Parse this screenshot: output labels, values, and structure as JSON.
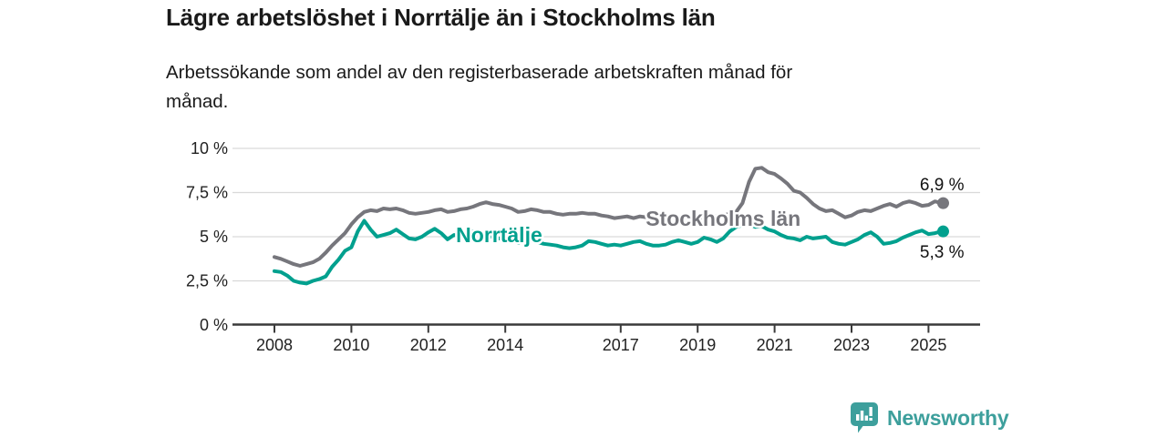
{
  "title": "Lägre arbetslöshet i Norrtälje än i Stockholms län",
  "subtitle_lines": [
    "Arbetssökande som andel av den registerbaserade arbetskraften månad för",
    "månad."
  ],
  "branding": {
    "name": "Newsworthy",
    "color": "#3D9F9C",
    "icon": "bar-chart-speech-bubble-icon"
  },
  "chart_data": {
    "type": "line",
    "title": "Lägre arbetslöshet i Norrtälje än i Stockholms län",
    "subtitle": "Arbetssökande som andel av den registerbaserade arbetskraften månad för månad.",
    "unit": "%",
    "grid": true,
    "legend_position": "inline-labels",
    "ylim": [
      0,
      10
    ],
    "xlim": [
      2006.9,
      2026.3
    ],
    "x_start": 2008,
    "x_step_years": 0.16667,
    "y_ticks": [
      {
        "value": 0,
        "label": "0 %"
      },
      {
        "value": 2.5,
        "label": "2,5 %"
      },
      {
        "value": 5,
        "label": "5 %"
      },
      {
        "value": 7.5,
        "label": "7,5 %"
      },
      {
        "value": 10,
        "label": "10 %"
      }
    ],
    "x_ticks": [
      {
        "value": 2008,
        "label": "2008"
      },
      {
        "value": 2010,
        "label": "2010"
      },
      {
        "value": 2012,
        "label": "2012"
      },
      {
        "value": 2014,
        "label": "2014"
      },
      {
        "value": 2017,
        "label": "2017"
      },
      {
        "value": 2019,
        "label": "2019"
      },
      {
        "value": 2021,
        "label": "2021"
      },
      {
        "value": 2023,
        "label": "2023"
      },
      {
        "value": 2025,
        "label": "2025"
      }
    ],
    "series": [
      {
        "name": "Stockholms län",
        "color": "#76767C",
        "end_value": 6.9,
        "end_label": "6,9 %",
        "end_label_position": "above",
        "inline_label": {
          "year": 2017.65,
          "value": 5.62
        },
        "values": [
          3.85,
          3.75,
          3.6,
          3.45,
          3.35,
          3.45,
          3.55,
          3.75,
          4.1,
          4.5,
          4.85,
          5.2,
          5.7,
          6.1,
          6.4,
          6.5,
          6.45,
          6.6,
          6.55,
          6.6,
          6.5,
          6.35,
          6.3,
          6.35,
          6.4,
          6.5,
          6.55,
          6.4,
          6.45,
          6.55,
          6.6,
          6.7,
          6.85,
          6.95,
          6.85,
          6.8,
          6.7,
          6.6,
          6.4,
          6.45,
          6.55,
          6.5,
          6.4,
          6.4,
          6.3,
          6.25,
          6.3,
          6.3,
          6.35,
          6.3,
          6.3,
          6.2,
          6.15,
          6.05,
          6.1,
          6.15,
          6.05,
          6.15,
          6.1,
          6.05,
          6.1,
          6.1,
          6.15,
          6.1,
          6.05,
          6.1,
          6.1,
          6.1,
          6.15,
          6.15,
          6.2,
          6.3,
          6.4,
          6.9,
          8.1,
          8.85,
          8.9,
          8.65,
          8.55,
          8.3,
          8.0,
          7.6,
          7.5,
          7.2,
          6.85,
          6.6,
          6.45,
          6.5,
          6.3,
          6.1,
          6.2,
          6.4,
          6.5,
          6.45,
          6.6,
          6.75,
          6.85,
          6.7,
          6.9,
          7.0,
          6.9,
          6.75,
          6.8,
          7.0,
          6.9
        ]
      },
      {
        "name": "Norrtälje",
        "color": "#00A08E",
        "end_value": 5.3,
        "end_label": "5,3 %",
        "end_label_position": "below",
        "inline_label": {
          "year": 2012.72,
          "value": 4.68
        },
        "values": [
          3.05,
          3.0,
          2.8,
          2.5,
          2.4,
          2.35,
          2.5,
          2.6,
          2.75,
          3.3,
          3.7,
          4.2,
          4.4,
          5.3,
          5.9,
          5.4,
          5.0,
          5.1,
          5.2,
          5.4,
          5.15,
          4.9,
          4.85,
          5.0,
          5.25,
          5.45,
          5.2,
          4.85,
          5.1,
          5.0,
          5.15,
          5.3,
          5.15,
          5.05,
          5.0,
          4.9,
          4.85,
          4.8,
          4.65,
          4.7,
          4.8,
          4.7,
          4.6,
          4.55,
          4.5,
          4.4,
          4.35,
          4.4,
          4.5,
          4.75,
          4.7,
          4.6,
          4.5,
          4.55,
          4.5,
          4.6,
          4.7,
          4.75,
          4.6,
          4.5,
          4.5,
          4.55,
          4.7,
          4.8,
          4.7,
          4.6,
          4.7,
          4.95,
          4.85,
          4.7,
          4.9,
          5.3,
          5.55,
          5.65,
          5.7,
          5.55,
          5.6,
          5.4,
          5.3,
          5.1,
          4.95,
          4.9,
          4.8,
          5.0,
          4.9,
          4.95,
          5.0,
          4.7,
          4.6,
          4.55,
          4.7,
          4.85,
          5.1,
          5.25,
          5.0,
          4.6,
          4.65,
          4.75,
          4.95,
          5.1,
          5.25,
          5.35,
          5.15,
          5.2,
          5.3
        ]
      }
    ]
  }
}
